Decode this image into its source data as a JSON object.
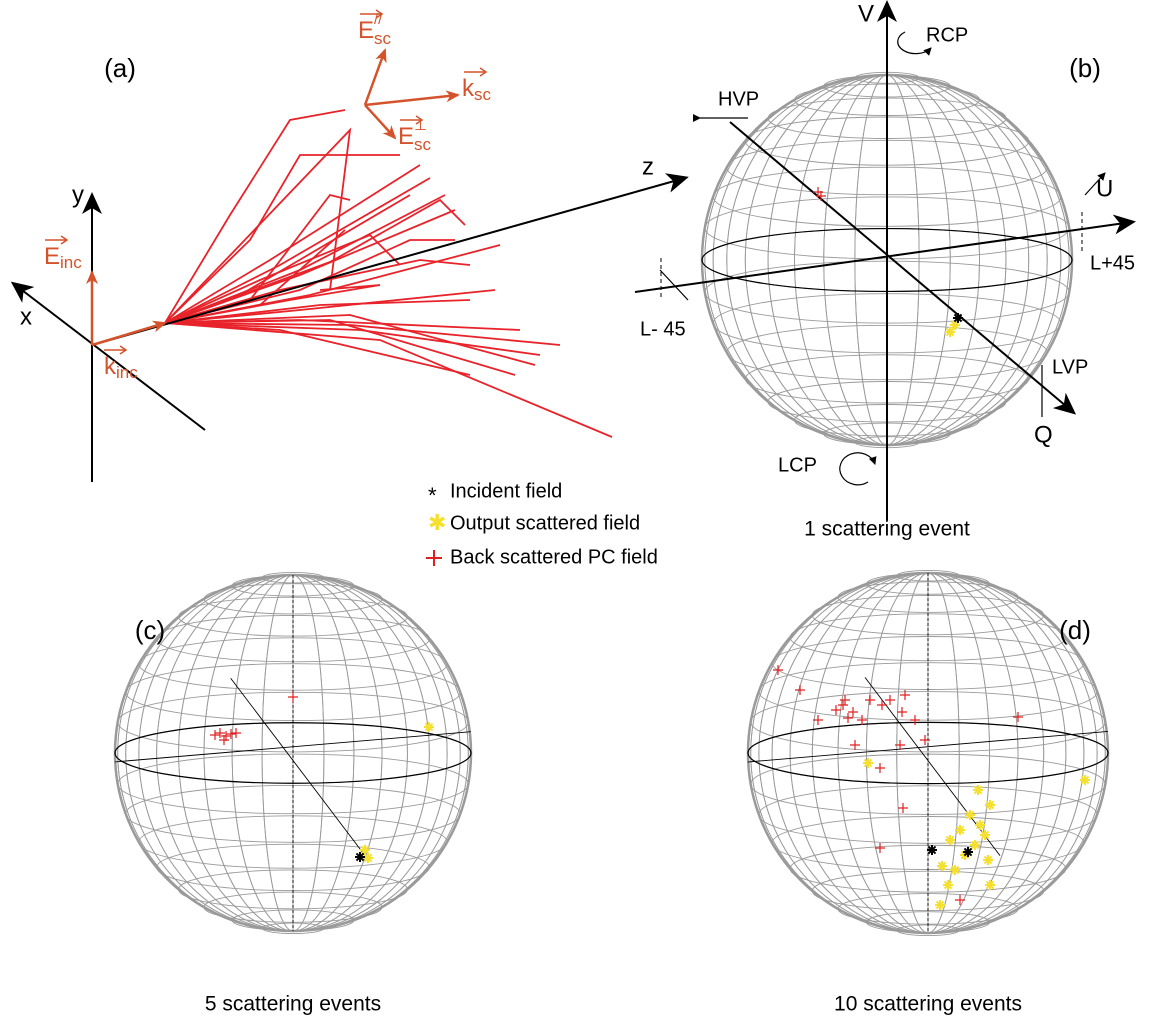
{
  "panels": {
    "a": {
      "label": "(a)",
      "axes": {
        "x": "x",
        "y": "y",
        "z": "z"
      },
      "vectors": {
        "E_inc": {
          "base": "E",
          "sub": "inc"
        },
        "k_inc": {
          "base": "k",
          "sub": "inc"
        },
        "E_sc_par": {
          "base": "E",
          "sub": "sc",
          "sup": "//"
        },
        "E_sc_perp": {
          "base": "E",
          "sub": "sc",
          "sup": "⊥"
        },
        "k_sc": {
          "base": "k",
          "sub": "sc"
        }
      }
    },
    "b": {
      "label": "(b)",
      "caption": "1 scattering event",
      "axes": {
        "V": "V",
        "U": "U",
        "Q": "Q"
      },
      "states": {
        "RCP": "RCP",
        "LCP": "LCP",
        "HVP": "HVP",
        "LVP": "LVP",
        "L_plus": "L+45",
        "L_minus": "L- 45"
      }
    },
    "c": {
      "label": "(c)",
      "caption": "5 scattering events"
    },
    "d": {
      "label": "(d)",
      "caption": "10 scattering events"
    }
  },
  "legend": [
    "Incident field",
    "Output scattered field",
    "Back scattered PC field"
  ]
}
